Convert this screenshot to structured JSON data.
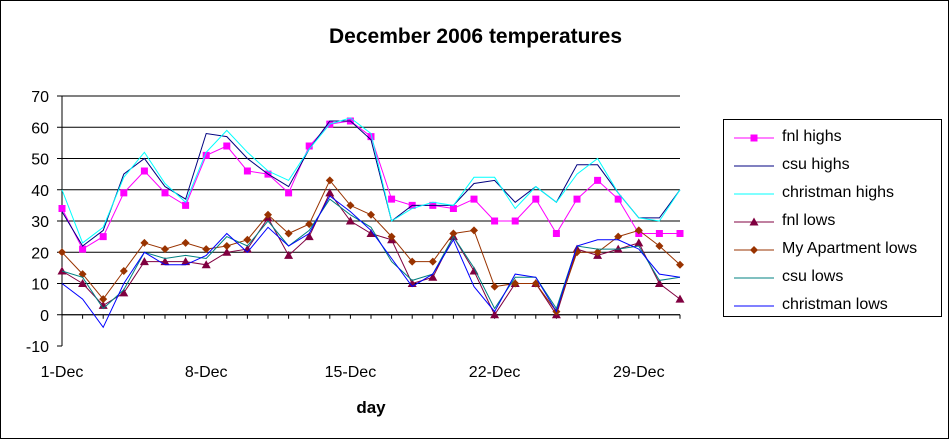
{
  "chart_data": {
    "type": "line",
    "title": "December 2006 temperatures",
    "xlabel": "day",
    "ylabel": "",
    "ylim": [
      -10,
      70
    ],
    "yticks": [
      -10,
      0,
      10,
      20,
      30,
      40,
      50,
      60,
      70
    ],
    "x_tick_labels": [
      {
        "day": 1,
        "label": "1-Dec"
      },
      {
        "day": 8,
        "label": "8-Dec"
      },
      {
        "day": 15,
        "label": "15-Dec"
      },
      {
        "day": 22,
        "label": "22-Dec"
      },
      {
        "day": 29,
        "label": "29-Dec"
      }
    ],
    "x": [
      1,
      2,
      3,
      4,
      5,
      6,
      7,
      8,
      9,
      10,
      11,
      12,
      13,
      14,
      15,
      16,
      17,
      18,
      19,
      20,
      21,
      22,
      23,
      24,
      25,
      26,
      27,
      28,
      29,
      30,
      31
    ],
    "grid": true,
    "legend_position": "right",
    "series": [
      {
        "name": "fnl highs",
        "color": "#ff00ff",
        "marker": "square",
        "values": [
          34,
          21,
          25,
          39,
          46,
          39,
          35,
          51,
          54,
          46,
          45,
          39,
          54,
          61,
          62,
          57,
          37,
          35,
          35,
          34,
          37,
          30,
          30,
          37,
          26,
          37,
          43,
          37,
          26,
          26,
          26
        ]
      },
      {
        "name": "csu highs",
        "color": "#000080",
        "marker": "none",
        "values": [
          33,
          22,
          27,
          45,
          50,
          41,
          37,
          58,
          57,
          50,
          45,
          41,
          53,
          62,
          62,
          56,
          30,
          35,
          35,
          35,
          42,
          43,
          36,
          41,
          36,
          48,
          48,
          39,
          31,
          31,
          40
        ]
      },
      {
        "name": "christman highs",
        "color": "#00ffff",
        "marker": "none",
        "values": [
          40,
          23,
          28,
          44,
          52,
          42,
          36,
          52,
          59,
          52,
          46,
          43,
          53,
          61,
          63,
          58,
          30,
          34,
          36,
          35,
          44,
          44,
          34,
          41,
          36,
          45,
          50,
          39,
          31,
          30,
          40
        ]
      },
      {
        "name": "fnl lows",
        "color": "#800040",
        "marker": "triangle",
        "values": [
          14,
          10,
          3,
          7,
          17,
          17,
          17,
          16,
          20,
          21,
          31,
          19,
          25,
          39,
          30,
          26,
          24,
          10,
          12,
          25,
          14,
          0,
          10,
          10,
          0,
          21,
          19,
          21,
          23,
          10,
          5
        ]
      },
      {
        "name": "My Apartment lows",
        "color": "#993300",
        "marker": "diamond",
        "values": [
          20,
          13,
          5,
          14,
          23,
          21,
          23,
          21,
          22,
          24,
          32,
          26,
          29,
          43,
          35,
          32,
          25,
          17,
          17,
          26,
          27,
          9,
          10,
          10,
          1,
          20,
          20,
          25,
          27,
          22,
          16
        ]
      },
      {
        "name": "csu lows",
        "color": "#008080",
        "marker": "none",
        "values": [
          14,
          12,
          2,
          8,
          20,
          18,
          19,
          18,
          25,
          22,
          30,
          22,
          27,
          37,
          32,
          28,
          17,
          11,
          13,
          25,
          15,
          2,
          12,
          12,
          2,
          22,
          21,
          21,
          22,
          11,
          12
        ]
      },
      {
        "name": "christman lows",
        "color": "#0000ff",
        "marker": "none",
        "values": [
          10,
          5,
          -4,
          10,
          20,
          16,
          16,
          19,
          26,
          20,
          28,
          22,
          26,
          38,
          33,
          27,
          18,
          9,
          13,
          24,
          9,
          1,
          13,
          12,
          1,
          22,
          24,
          24,
          21,
          13,
          12
        ]
      }
    ]
  }
}
